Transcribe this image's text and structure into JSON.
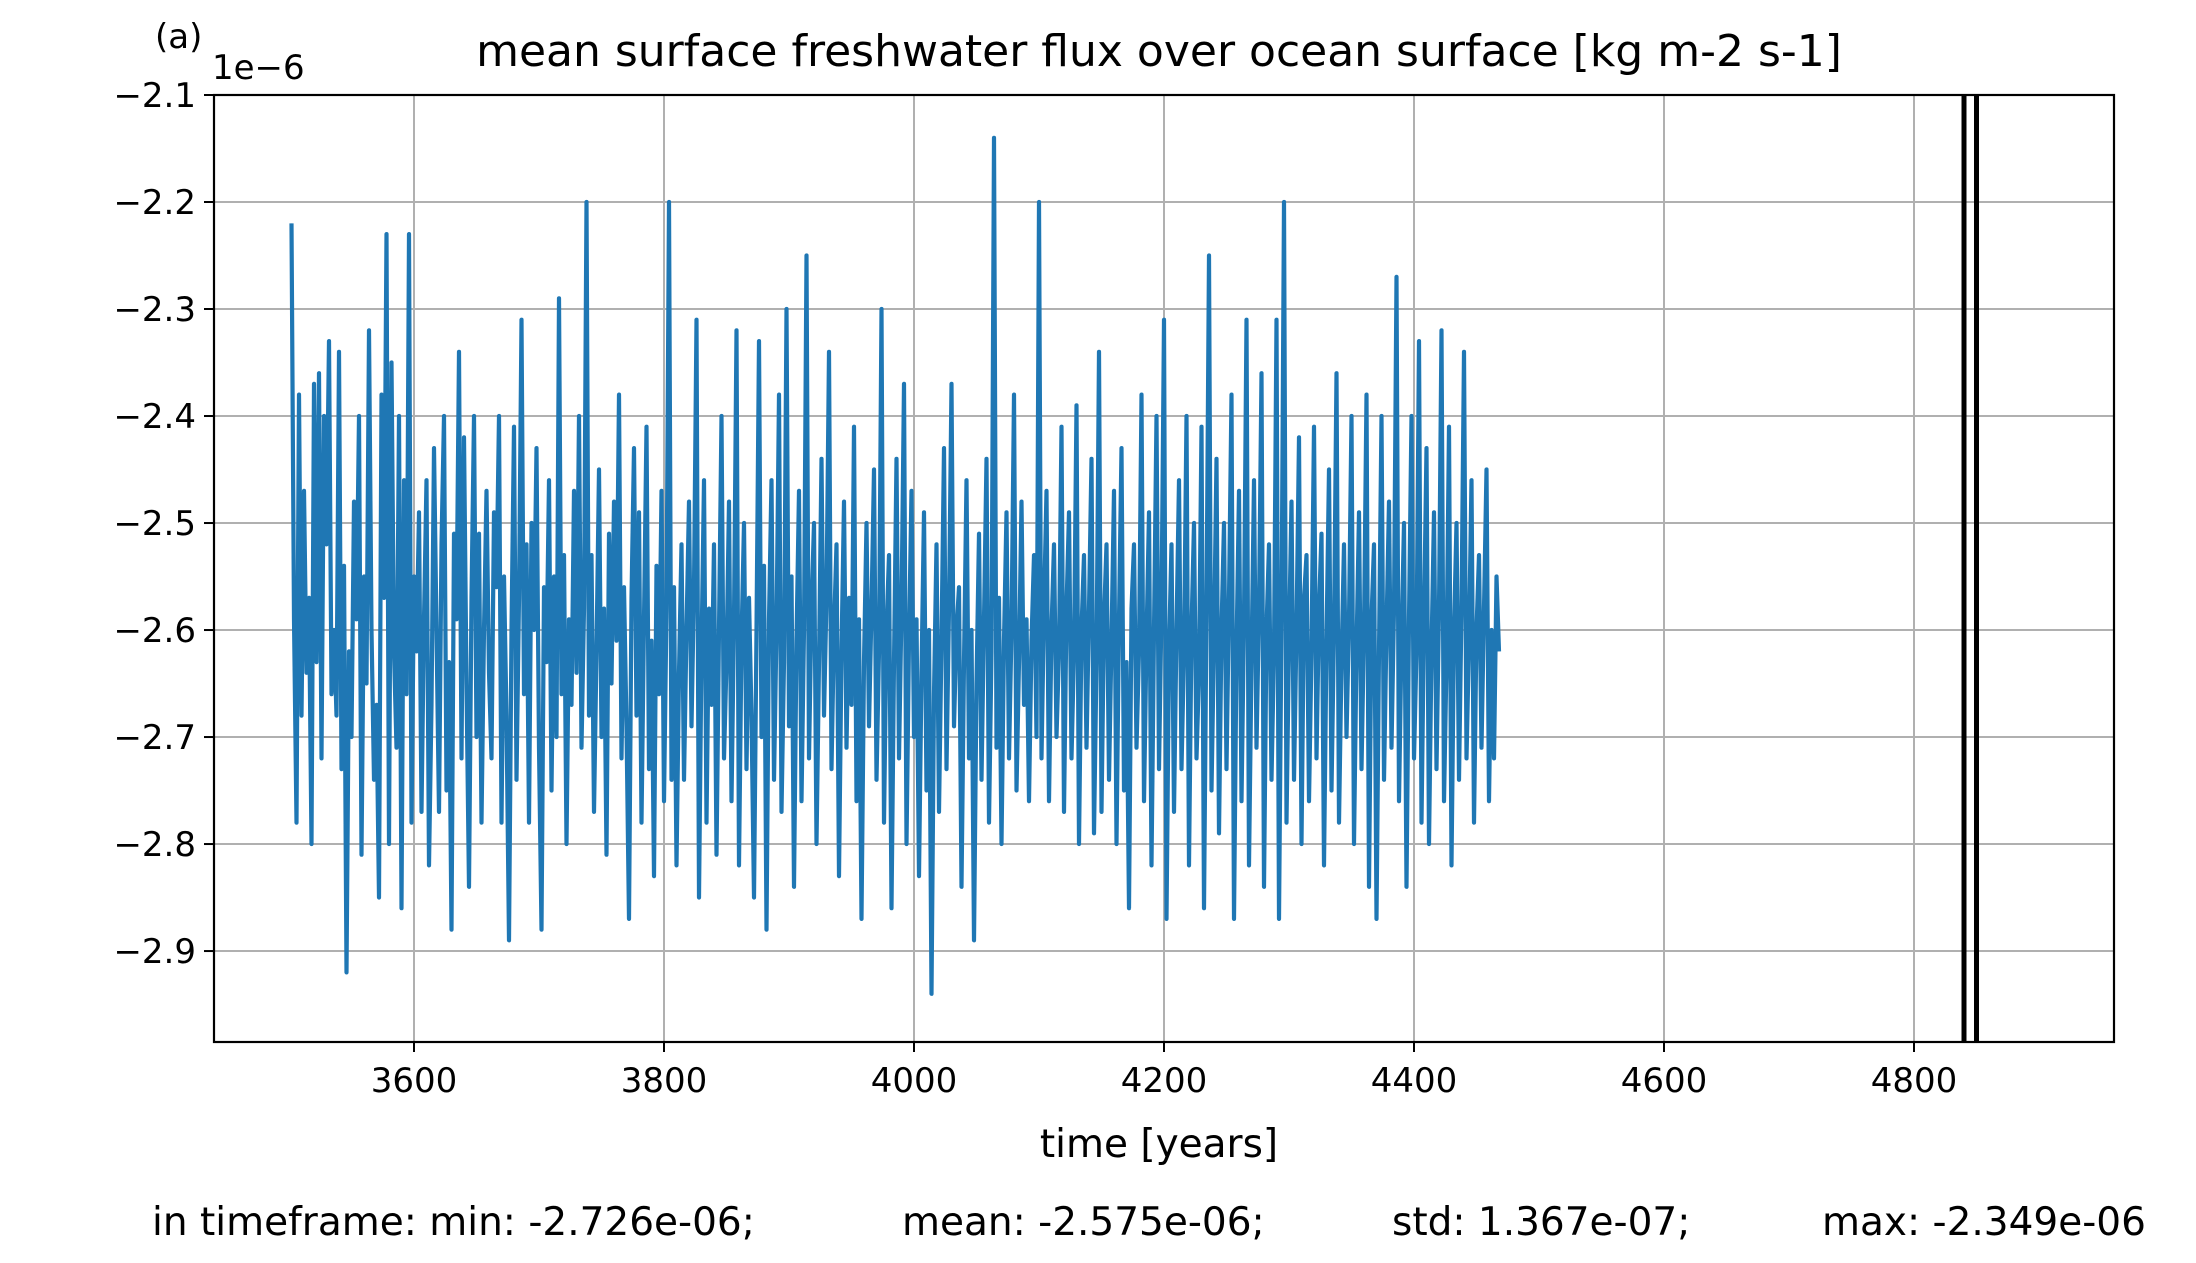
{
  "panel_label": "(a)",
  "chart_data": {
    "type": "line",
    "title": "mean surface freshwater flux over ocean surface [kg m-2 s-1]",
    "xlabel": "time [years]",
    "ylabel": "",
    "offset_text": "1e−6",
    "scale": 1e-06,
    "xlim": [
      3440,
      4960
    ],
    "ylim": [
      -2.985,
      -2.1
    ],
    "xticks": [
      3600,
      3800,
      4000,
      4200,
      4400,
      4600,
      4800
    ],
    "xtick_labels": [
      "3600",
      "3800",
      "4000",
      "4200",
      "4400",
      "4600",
      "4800"
    ],
    "yticks": [
      -2.9,
      -2.8,
      -2.7,
      -2.6,
      -2.5,
      -2.4,
      -2.3,
      -2.2,
      -2.1
    ],
    "ytick_labels": [
      "−2.9",
      "−2.8",
      "−2.7",
      "−2.6",
      "−2.5",
      "−2.4",
      "−2.3",
      "−2.2",
      "−2.1"
    ],
    "grid": true,
    "line_color": "#1f77b4",
    "marker_color": "#000000",
    "vertical_markers": [
      4840,
      4850
    ],
    "series": [
      {
        "x_start": 3502,
        "x_step": 2,
        "values": [
          -2.22,
          -2.59,
          -2.78,
          -2.38,
          -2.68,
          -2.47,
          -2.64,
          -2.57,
          -2.8,
          -2.37,
          -2.63,
          -2.36,
          -2.72,
          -2.4,
          -2.52,
          -2.33,
          -2.66,
          -2.6,
          -2.68,
          -2.34,
          -2.73,
          -2.54,
          -2.92,
          -2.62,
          -2.7,
          -2.48,
          -2.59,
          -2.4,
          -2.81,
          -2.55,
          -2.65,
          -2.32,
          -2.6,
          -2.74,
          -2.67,
          -2.85,
          -2.38,
          -2.57,
          -2.23,
          -2.8,
          -2.35,
          -2.62,
          -2.71,
          -2.4,
          -2.86,
          -2.46,
          -2.66,
          -2.23,
          -2.78,
          -2.55,
          -2.62,
          -2.49,
          -2.77,
          -2.59,
          -2.46,
          -2.82,
          -2.67,
          -2.43,
          -2.6,
          -2.77,
          -2.52,
          -2.4,
          -2.75,
          -2.63,
          -2.88,
          -2.51,
          -2.59,
          -2.34,
          -2.72,
          -2.42,
          -2.65,
          -2.84,
          -2.57,
          -2.4,
          -2.7,
          -2.51,
          -2.78,
          -2.6,
          -2.47,
          -2.64,
          -2.72,
          -2.49,
          -2.56,
          -2.4,
          -2.78,
          -2.55,
          -2.68,
          -2.89,
          -2.6,
          -2.41,
          -2.74,
          -2.57,
          -2.31,
          -2.66,
          -2.52,
          -2.78,
          -2.5,
          -2.6,
          -2.43,
          -2.71,
          -2.88,
          -2.56,
          -2.63,
          -2.46,
          -2.75,
          -2.55,
          -2.7,
          -2.29,
          -2.66,
          -2.53,
          -2.8,
          -2.59,
          -2.67,
          -2.47,
          -2.64,
          -2.4,
          -2.71,
          -2.58,
          -2.2,
          -2.68,
          -2.53,
          -2.77,
          -2.62,
          -2.45,
          -2.7,
          -2.58,
          -2.81,
          -2.51,
          -2.65,
          -2.48,
          -2.61,
          -2.38,
          -2.72,
          -2.56,
          -2.69,
          -2.87,
          -2.57,
          -2.43,
          -2.68,
          -2.49,
          -2.78,
          -2.59,
          -2.41,
          -2.73,
          -2.61,
          -2.83,
          -2.54,
          -2.66,
          -2.47,
          -2.76,
          -2.58,
          -2.2,
          -2.74,
          -2.56,
          -2.82,
          -2.64,
          -2.52,
          -2.74,
          -2.6,
          -2.48,
          -2.69,
          -2.56,
          -2.31,
          -2.85,
          -2.62,
          -2.46,
          -2.78,
          -2.58,
          -2.67,
          -2.52,
          -2.81,
          -2.6,
          -2.4,
          -2.72,
          -2.63,
          -2.48,
          -2.76,
          -2.59,
          -2.32,
          -2.82,
          -2.61,
          -2.5,
          -2.73,
          -2.57,
          -2.68,
          -2.85,
          -2.6,
          -2.33,
          -2.7,
          -2.54,
          -2.88,
          -2.59,
          -2.46,
          -2.74,
          -2.6,
          -2.38,
          -2.77,
          -2.63,
          -2.3,
          -2.69,
          -2.55,
          -2.84,
          -2.61,
          -2.47,
          -2.76,
          -2.6,
          -2.25,
          -2.72,
          -2.58,
          -2.5,
          -2.8,
          -2.63,
          -2.44,
          -2.68,
          -2.57,
          -2.34,
          -2.73,
          -2.6,
          -2.52,
          -2.83,
          -2.62,
          -2.48,
          -2.71,
          -2.57,
          -2.67,
          -2.41,
          -2.76,
          -2.59,
          -2.87,
          -2.63,
          -2.5,
          -2.69,
          -2.58,
          -2.45,
          -2.74,
          -2.62,
          -2.3,
          -2.78,
          -2.6,
          -2.53,
          -2.86,
          -2.63,
          -2.44,
          -2.72,
          -2.58,
          -2.37,
          -2.8,
          -2.61,
          -2.47,
          -2.7,
          -2.59,
          -2.83,
          -2.64,
          -2.49,
          -2.75,
          -2.6,
          -2.94,
          -2.66,
          -2.52,
          -2.77,
          -2.61,
          -2.43,
          -2.73,
          -2.58,
          -2.37,
          -2.69,
          -2.6,
          -2.56,
          -2.84,
          -2.63,
          -2.46,
          -2.72,
          -2.6,
          -2.89,
          -2.65,
          -2.51,
          -2.74,
          -2.59,
          -2.44,
          -2.78,
          -2.62,
          -2.14,
          -2.71,
          -2.57,
          -2.8,
          -2.61,
          -2.49,
          -2.72,
          -2.6,
          -2.38,
          -2.75,
          -2.63,
          -2.48,
          -2.67,
          -2.59,
          -2.76,
          -2.61,
          -2.53,
          -2.7,
          -2.2,
          -2.72,
          -2.58,
          -2.47,
          -2.76,
          -2.6,
          -2.52,
          -2.7,
          -2.62,
          -2.41,
          -2.77,
          -2.58,
          -2.49,
          -2.72,
          -2.62,
          -2.39,
          -2.8,
          -2.6,
          -2.53,
          -2.71,
          -2.58,
          -2.44,
          -2.79,
          -2.63,
          -2.34,
          -2.77,
          -2.59,
          -2.52,
          -2.74,
          -2.61,
          -2.47,
          -2.8,
          -2.59,
          -2.43,
          -2.75,
          -2.63,
          -2.86,
          -2.58,
          -2.52,
          -2.71,
          -2.62,
          -2.38,
          -2.76,
          -2.61,
          -2.49,
          -2.82,
          -2.6,
          -2.4,
          -2.73,
          -2.58,
          -2.31,
          -2.87,
          -2.62,
          -2.52,
          -2.77,
          -2.6,
          -2.46,
          -2.73,
          -2.62,
          -2.4,
          -2.82,
          -2.6,
          -2.5,
          -2.72,
          -2.64,
          -2.41,
          -2.86,
          -2.58,
          -2.25,
          -2.75,
          -2.61,
          -2.44,
          -2.79,
          -2.6,
          -2.5,
          -2.73,
          -2.57,
          -2.38,
          -2.87,
          -2.62,
          -2.47,
          -2.76,
          -2.59,
          -2.31,
          -2.82,
          -2.63,
          -2.46,
          -2.71,
          -2.58,
          -2.36,
          -2.84,
          -2.6,
          -2.52,
          -2.74,
          -2.62,
          -2.31,
          -2.87,
          -2.59,
          -2.2,
          -2.78,
          -2.61,
          -2.48,
          -2.74,
          -2.6,
          -2.42,
          -2.8,
          -2.57,
          -2.53,
          -2.76,
          -2.62,
          -2.41,
          -2.72,
          -2.58,
          -2.51,
          -2.82,
          -2.61,
          -2.45,
          -2.75,
          -2.6,
          -2.36,
          -2.78,
          -2.63,
          -2.52,
          -2.7,
          -2.59,
          -2.4,
          -2.8,
          -2.62,
          -2.49,
          -2.73,
          -2.6,
          -2.38,
          -2.84,
          -2.59,
          -2.52,
          -2.87,
          -2.62,
          -2.4,
          -2.74,
          -2.6,
          -2.48,
          -2.71,
          -2.58,
          -2.27,
          -2.76,
          -2.61,
          -2.5,
          -2.84,
          -2.59,
          -2.4,
          -2.72,
          -2.62,
          -2.33,
          -2.78,
          -2.59,
          -2.43,
          -2.8,
          -2.62,
          -2.49,
          -2.73,
          -2.58,
          -2.32,
          -2.76,
          -2.63,
          -2.41,
          -2.82,
          -2.6,
          -2.5,
          -2.74,
          -2.58,
          -2.34,
          -2.72,
          -2.61,
          -2.46,
          -2.78,
          -2.6,
          -2.53,
          -2.71,
          -2.58,
          -2.45,
          -2.76,
          -2.6,
          -2.72,
          -2.55,
          -2.62
        ]
      }
    ]
  },
  "stats": {
    "min": "in timeframe: min: -2.726e-06;",
    "mean": "mean: -2.575e-06;",
    "std": "std: 1.367e-07;",
    "max": "max: -2.349e-06"
  }
}
